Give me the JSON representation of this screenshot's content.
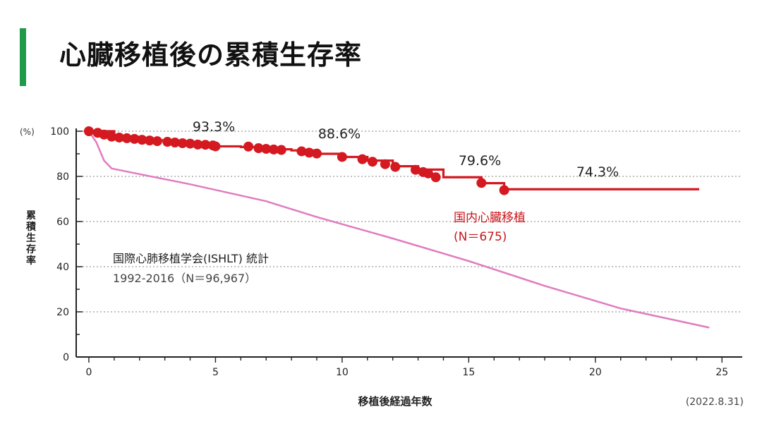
{
  "page": {
    "title": "心臓移植後の累積生存率",
    "date": "(2022.8.31)"
  },
  "colors": {
    "accent_bar": "#1f9a4a",
    "japan_series": "#d41920",
    "japan_label": "#c8171e",
    "ishlt_series": "#e07cc0",
    "grid": "#9a9a9a",
    "axis": "#222222"
  },
  "chart_data": {
    "type": "line",
    "title": "心臓移植後の累積生存率",
    "xlabel": "移植後経過年数",
    "ylabel": "累積生存率",
    "y_unit": "(%)",
    "xlim": [
      -0.5,
      25.8
    ],
    "ylim": [
      0,
      100
    ],
    "x_ticks": [
      0,
      5,
      10,
      15,
      20,
      25
    ],
    "y_ticks": [
      0,
      20,
      40,
      60,
      80,
      100
    ],
    "grid": true,
    "grid_style": "dotted-horizontal",
    "series": [
      {
        "name": "国内心臓移植",
        "sub": "(N＝675)",
        "style": "step",
        "color": "#d41920",
        "points": [
          [
            0,
            100
          ],
          [
            1,
            97.5
          ],
          [
            2,
            96
          ],
          [
            3,
            95
          ],
          [
            4,
            94
          ],
          [
            5,
            93.3
          ],
          [
            6,
            93
          ],
          [
            7,
            92
          ],
          [
            8,
            91.5
          ],
          [
            9,
            90
          ],
          [
            10,
            88.6
          ],
          [
            11,
            87
          ],
          [
            12,
            84.5
          ],
          [
            13,
            83
          ],
          [
            14,
            79.6
          ],
          [
            15,
            79.6
          ],
          [
            15.5,
            77
          ],
          [
            16.4,
            74.3
          ],
          [
            24.1,
            74.3
          ]
        ],
        "markers": [
          [
            0,
            100
          ],
          [
            0.35,
            99.3
          ],
          [
            0.6,
            98.5
          ],
          [
            0.9,
            97.6
          ],
          [
            1.2,
            97.2
          ],
          [
            1.5,
            96.9
          ],
          [
            1.8,
            96.6
          ],
          [
            2.1,
            96.2
          ],
          [
            2.4,
            95.9
          ],
          [
            2.7,
            95.6
          ],
          [
            3.1,
            95.3
          ],
          [
            3.4,
            95
          ],
          [
            3.7,
            94.7
          ],
          [
            4.0,
            94.5
          ],
          [
            4.3,
            94.1
          ],
          [
            4.6,
            94.0
          ],
          [
            4.9,
            93.7
          ],
          [
            5.0,
            93.3
          ],
          [
            6.3,
            93.2
          ],
          [
            6.7,
            92.5
          ],
          [
            7.0,
            92.2
          ],
          [
            7.3,
            91.9
          ],
          [
            7.6,
            91.7
          ],
          [
            8.4,
            91.1
          ],
          [
            8.7,
            90.5
          ],
          [
            9.0,
            90.1
          ],
          [
            10.0,
            88.6
          ],
          [
            10.8,
            87.6
          ],
          [
            11.2,
            86.5
          ],
          [
            11.7,
            85.4
          ],
          [
            12.1,
            84.2
          ],
          [
            12.9,
            82.9
          ],
          [
            13.2,
            81.9
          ],
          [
            13.4,
            81.3
          ],
          [
            13.7,
            79.6
          ],
          [
            15.5,
            77.1
          ],
          [
            16.4,
            73.9
          ]
        ],
        "annotations": [
          {
            "x": 5,
            "y": 93.3,
            "text": "93.3%"
          },
          {
            "x": 10,
            "y": 88.6,
            "text": "88.6%"
          },
          {
            "x": 15,
            "y": 79.6,
            "text": "79.6%"
          },
          {
            "x": 20,
            "y": 74.3,
            "text": "74.3%"
          }
        ]
      },
      {
        "name": "国際心肺移植学会(ISHLT) 統計",
        "sub": "1992‐2016（N＝96,967）",
        "style": "line",
        "color": "#e07cc0",
        "points": [
          [
            0,
            100
          ],
          [
            0.3,
            95
          ],
          [
            0.6,
            87
          ],
          [
            0.9,
            83.5
          ],
          [
            2,
            81
          ],
          [
            4,
            76.5
          ],
          [
            6,
            71.5
          ],
          [
            7,
            69
          ],
          [
            9,
            62
          ],
          [
            12,
            52.5
          ],
          [
            15,
            42.5
          ],
          [
            18,
            31.5
          ],
          [
            21,
            21.5
          ],
          [
            24.5,
            13
          ]
        ]
      }
    ]
  }
}
